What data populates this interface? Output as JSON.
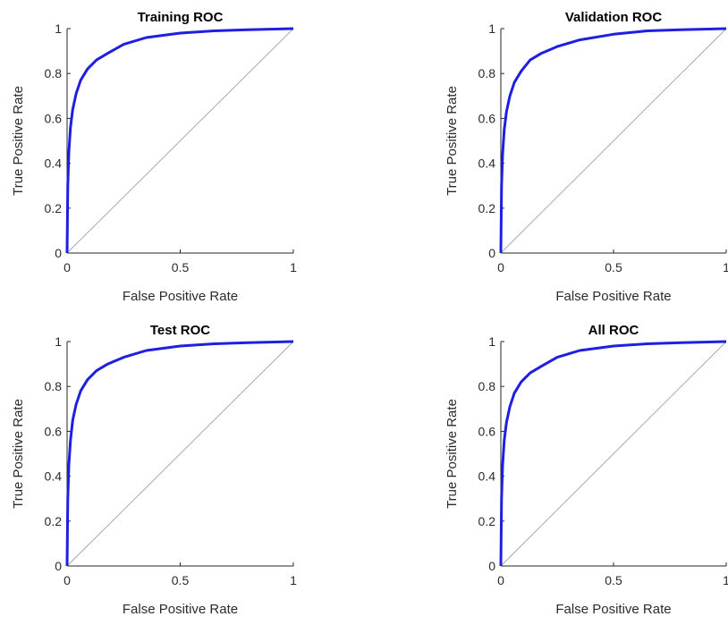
{
  "chart_data": [
    {
      "type": "line",
      "title": "Training ROC",
      "xlabel": "False Positive Rate",
      "ylabel": "True Positive Rate",
      "xlim": [
        0,
        1
      ],
      "ylim": [
        0,
        1
      ],
      "xticks": [
        "0",
        "0.5",
        "1"
      ],
      "yticks": [
        "0",
        "0.2",
        "0.4",
        "0.6",
        "0.8",
        "1"
      ],
      "grid": false,
      "series": [
        {
          "x": [
            0,
            0.003,
            0.008,
            0.015,
            0.025,
            0.04,
            0.06,
            0.09,
            0.13,
            0.18,
            0.25,
            0.35,
            0.5,
            0.65,
            0.8,
            1
          ],
          "y": [
            0,
            0.3,
            0.45,
            0.56,
            0.64,
            0.71,
            0.77,
            0.82,
            0.86,
            0.89,
            0.93,
            0.96,
            0.98,
            0.99,
            0.995,
            1
          ]
        },
        {
          "x": [
            0,
            1
          ],
          "y": [
            0,
            1
          ]
        }
      ]
    },
    {
      "type": "line",
      "title": "Validation ROC",
      "xlabel": "False Positive Rate",
      "ylabel": "True Positive Rate",
      "xlim": [
        0,
        1
      ],
      "ylim": [
        0,
        1
      ],
      "xticks": [
        "0",
        "0.5",
        "1"
      ],
      "yticks": [
        "0",
        "0.2",
        "0.4",
        "0.6",
        "0.8",
        "1"
      ],
      "grid": false,
      "series": [
        {
          "x": [
            0,
            0.003,
            0.008,
            0.015,
            0.025,
            0.04,
            0.06,
            0.09,
            0.13,
            0.18,
            0.25,
            0.35,
            0.5,
            0.65,
            0.8,
            1
          ],
          "y": [
            0,
            0.3,
            0.44,
            0.55,
            0.63,
            0.7,
            0.76,
            0.81,
            0.86,
            0.89,
            0.92,
            0.95,
            0.975,
            0.99,
            0.995,
            1
          ]
        },
        {
          "x": [
            0,
            1
          ],
          "y": [
            0,
            1
          ]
        }
      ]
    },
    {
      "type": "line",
      "title": "Test ROC",
      "xlabel": "False Positive Rate",
      "ylabel": "True Positive Rate",
      "xlim": [
        0,
        1
      ],
      "ylim": [
        0,
        1
      ],
      "xticks": [
        "0",
        "0.5",
        "1"
      ],
      "yticks": [
        "0",
        "0.2",
        "0.4",
        "0.6",
        "0.8",
        "1"
      ],
      "grid": false,
      "series": [
        {
          "x": [
            0,
            0.003,
            0.008,
            0.015,
            0.025,
            0.04,
            0.06,
            0.09,
            0.13,
            0.18,
            0.25,
            0.35,
            0.5,
            0.65,
            0.8,
            1
          ],
          "y": [
            0,
            0.3,
            0.45,
            0.56,
            0.65,
            0.72,
            0.78,
            0.83,
            0.87,
            0.9,
            0.93,
            0.96,
            0.98,
            0.99,
            0.995,
            1
          ]
        },
        {
          "x": [
            0,
            1
          ],
          "y": [
            0,
            1
          ]
        }
      ]
    },
    {
      "type": "line",
      "title": "All ROC",
      "xlabel": "False Positive Rate",
      "ylabel": "True Positive Rate",
      "xlim": [
        0,
        1
      ],
      "ylim": [
        0,
        1
      ],
      "xticks": [
        "0",
        "0.5",
        "1"
      ],
      "yticks": [
        "0",
        "0.2",
        "0.4",
        "0.6",
        "0.8",
        "1"
      ],
      "grid": false,
      "series": [
        {
          "x": [
            0,
            0.003,
            0.008,
            0.015,
            0.025,
            0.04,
            0.06,
            0.09,
            0.13,
            0.18,
            0.25,
            0.35,
            0.5,
            0.65,
            0.8,
            1
          ],
          "y": [
            0,
            0.3,
            0.45,
            0.56,
            0.64,
            0.71,
            0.77,
            0.82,
            0.86,
            0.89,
            0.93,
            0.96,
            0.98,
            0.99,
            0.995,
            1
          ]
        },
        {
          "x": [
            0,
            1
          ],
          "y": [
            0,
            1
          ]
        }
      ]
    }
  ],
  "colors": {
    "roc_line": "#1f1fe0",
    "diagonal": "#a8a8a8",
    "axis": "#262626"
  }
}
